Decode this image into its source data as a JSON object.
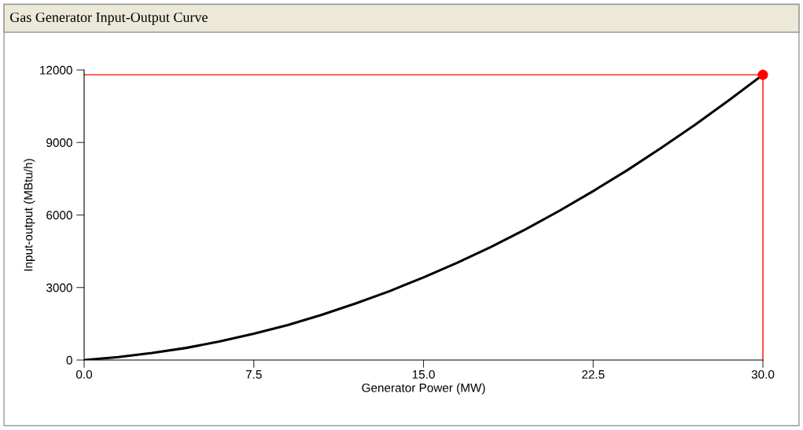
{
  "chart_data": {
    "type": "line",
    "title": "Gas Generator Input-Output Curve",
    "xlabel": "Generator Power (MW)",
    "ylabel": "Input-output (MBtu/h)",
    "x": [
      0,
      1.5,
      3,
      4.5,
      6,
      7.5,
      9,
      10.5,
      12,
      13.5,
      15,
      16.5,
      18,
      19.5,
      21,
      22.5,
      24,
      25.5,
      27,
      28.5,
      30
    ],
    "series": [
      {
        "color": "#000000",
        "values": [
          0,
          120,
          290,
          500,
          770,
          1090,
          1450,
          1870,
          2340,
          2850,
          3420,
          4030,
          4690,
          5400,
          6170,
          6990,
          7850,
          8770,
          9730,
          10750,
          11800
        ]
      },
      {
        "type": "scatter",
        "color": "#ff0000",
        "x": [
          30
        ],
        "values": [
          11800
        ],
        "marker": "circle"
      }
    ],
    "ref_lines": [
      {
        "axis": "y",
        "value": 11800,
        "color": "#ff0000"
      },
      {
        "axis": "x",
        "value": 30,
        "color": "#ff0000"
      }
    ],
    "xlim": [
      0,
      30
    ],
    "ylim": [
      0,
      12000
    ],
    "xticks": [
      {
        "value": 0,
        "label": "0.0"
      },
      7.5,
      {
        "value": 15,
        "label": "15.0"
      },
      {
        "value": 22.5,
        "label": "22.5"
      },
      {
        "value": 30,
        "label": "30.0"
      }
    ],
    "yticks": [
      0,
      3000,
      6000,
      9000,
      12000
    ],
    "grid": false,
    "legend": false
  }
}
